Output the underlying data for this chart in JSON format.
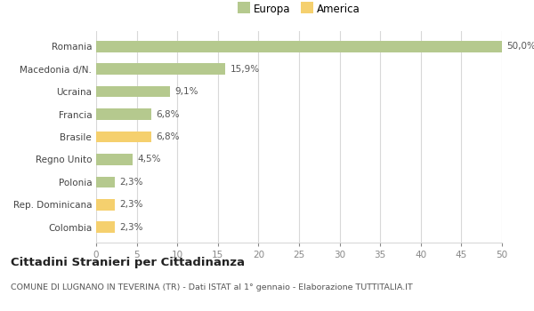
{
  "categories": [
    "Colombia",
    "Rep. Dominicana",
    "Polonia",
    "Regno Unito",
    "Brasile",
    "Francia",
    "Ucraina",
    "Macedonia d/N.",
    "Romania"
  ],
  "values": [
    2.3,
    2.3,
    2.3,
    4.5,
    6.8,
    6.8,
    9.1,
    15.9,
    50.0
  ],
  "labels": [
    "2,3%",
    "2,3%",
    "2,3%",
    "4,5%",
    "6,8%",
    "6,8%",
    "9,1%",
    "15,9%",
    "50,0%"
  ],
  "colors": [
    "#f5d06e",
    "#f5d06e",
    "#b5c98e",
    "#b5c98e",
    "#f5d06e",
    "#b5c98e",
    "#b5c98e",
    "#b5c98e",
    "#b5c98e"
  ],
  "europa_color": "#b5c98e",
  "america_color": "#f5d06e",
  "xlim": [
    0,
    50
  ],
  "xticks": [
    0,
    5,
    10,
    15,
    20,
    25,
    30,
    35,
    40,
    45,
    50
  ],
  "title": "Cittadini Stranieri per Cittadinanza",
  "subtitle": "COMUNE DI LUGNANO IN TEVERINA (TR) - Dati ISTAT al 1° gennaio - Elaborazione TUTTITALIA.IT",
  "legend_europa": "Europa",
  "legend_america": "America",
  "bg_color": "#ffffff",
  "grid_color": "#d8d8d8",
  "bar_height": 0.5
}
